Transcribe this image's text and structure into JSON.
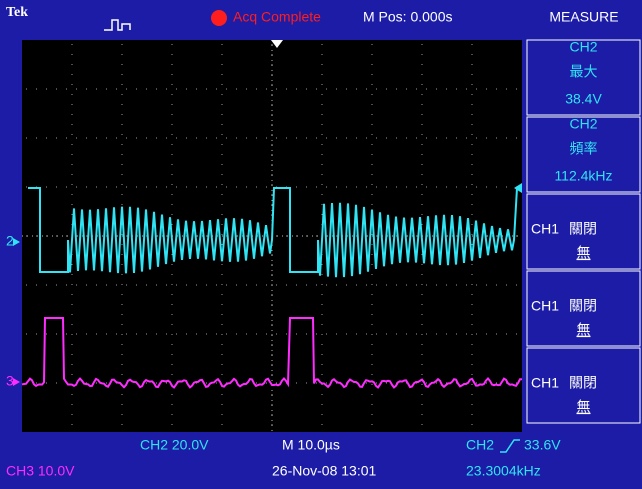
{
  "header": {
    "brand": "Tek",
    "status": "Acq Complete",
    "position": "M Pos: 0.000s"
  },
  "menu": {
    "title": "MEASURE",
    "items": [
      {
        "source": "CH2",
        "label": "最大",
        "value": "38.4V"
      },
      {
        "source": "CH2",
        "label": "頻率",
        "value": "112.4kHz"
      },
      {
        "source": "CH1",
        "label": "關閉",
        "value": "無"
      },
      {
        "source": "CH1",
        "label": "關閉",
        "value": "無"
      },
      {
        "source": "CH1",
        "label": "關閉",
        "value": "無"
      }
    ]
  },
  "graticule": {
    "channel_markers": [
      "2",
      "3"
    ]
  },
  "footer": {
    "ch2_scale": "CH2 20.0V",
    "timebase": "M 10.0µs",
    "trigger_source": "CH2",
    "trigger_level": "33.6V",
    "ch3_scale": "CH3 10.0V",
    "datetime": "26-Nov-08 13:01",
    "frequency": "23.3004kHz"
  }
}
